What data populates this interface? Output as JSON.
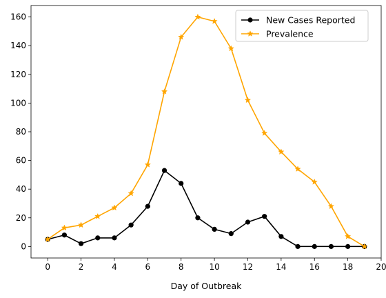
{
  "chart_data": {
    "type": "line",
    "xlabel": "Day of Outbreak",
    "ylabel": "",
    "xlim": [
      -1,
      20
    ],
    "ylim": [
      -8,
      168
    ],
    "xticks": [
      0,
      2,
      4,
      6,
      8,
      10,
      12,
      14,
      16,
      18,
      20
    ],
    "yticks": [
      0,
      20,
      40,
      60,
      80,
      100,
      120,
      140,
      160
    ],
    "grid": false,
    "legend_position": "top-right",
    "x": [
      0,
      1,
      2,
      3,
      4,
      5,
      6,
      7,
      8,
      9,
      10,
      11,
      12,
      13,
      14,
      15,
      16,
      17,
      18,
      19
    ],
    "series": [
      {
        "name": "New Cases Reported",
        "color": "#000000",
        "marker": "circle",
        "values": [
          5,
          8,
          2,
          6,
          6,
          15,
          28,
          53,
          44,
          20,
          12,
          9,
          17,
          21,
          7,
          0,
          0,
          0,
          0,
          0
        ]
      },
      {
        "name": "Prevalence",
        "color": "#ffa500",
        "marker": "star",
        "values": [
          5,
          13,
          15,
          21,
          27,
          37,
          57,
          108,
          146,
          160,
          157,
          138,
          102,
          79,
          66,
          54,
          45,
          28,
          7,
          0
        ]
      }
    ]
  }
}
